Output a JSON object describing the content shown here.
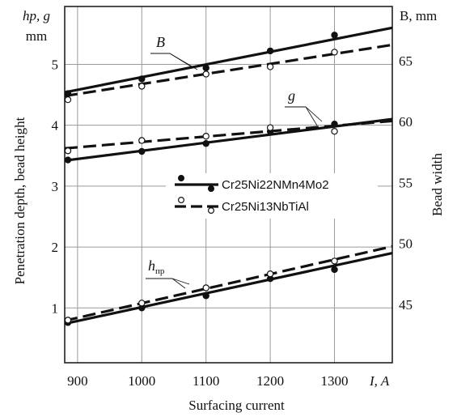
{
  "chart_data": {
    "type": "scatter",
    "x_label": "Surfacing current",
    "x_unit_label": "I, A",
    "x_ticks": [
      900,
      1000,
      1100,
      1200,
      1300
    ],
    "x_range": [
      880,
      1390
    ],
    "y_left_label": "Penetration depth, bead height",
    "y_left_header": "hp, g",
    "y_left_unit": "mm",
    "y_left_ticks": [
      1,
      2,
      3,
      4,
      5
    ],
    "y_left_range": [
      0.1,
      5.95
    ],
    "y_right_label": "Bead width",
    "y_right_header": "B, mm",
    "y_right_ticks": [
      45,
      50,
      55,
      60,
      65
    ],
    "y_right_range": [
      40.2,
      69.45
    ],
    "grid": true,
    "legend_position": "center-right",
    "legend": [
      {
        "label": "Cr25Ni22NMn4Mo2",
        "marker": "filled",
        "line": "solid"
      },
      {
        "label": "Cr25Ni13NbTiAl",
        "marker": "open",
        "line": "dashed"
      }
    ],
    "annotations": [
      {
        "base": "B",
        "sub": "",
        "series": "B"
      },
      {
        "base": "g",
        "sub": "",
        "series": "g"
      },
      {
        "base": "h",
        "sub": "пр",
        "series": "hp"
      }
    ],
    "series": [
      {
        "name": "B",
        "material": "Cr25Ni22NMn4Mo2",
        "axis": "right",
        "style": "solid",
        "marker": "filled",
        "points": [
          [
            885,
            62.3
          ],
          [
            1000,
            63.5
          ],
          [
            1100,
            64.4
          ],
          [
            1200,
            65.8
          ],
          [
            1300,
            67.1
          ]
        ],
        "fit": [
          [
            880,
            62.4
          ],
          [
            1390,
            67.7
          ]
        ]
      },
      {
        "name": "B",
        "material": "Cr25Ni13NbTiAl",
        "axis": "right",
        "style": "dashed",
        "marker": "open",
        "points": [
          [
            885,
            61.8
          ],
          [
            1000,
            62.9
          ],
          [
            1100,
            63.9
          ],
          [
            1200,
            64.5
          ],
          [
            1300,
            65.7
          ]
        ],
        "fit": [
          [
            880,
            62.1
          ],
          [
            1390,
            66.3
          ]
        ]
      },
      {
        "name": "g",
        "material": "Cr25Ni22NMn4Mo2",
        "axis": "left",
        "style": "solid",
        "marker": "filled",
        "points": [
          [
            885,
            3.43
          ],
          [
            1000,
            3.57
          ],
          [
            1100,
            3.7
          ],
          [
            1200,
            3.9
          ],
          [
            1300,
            4.02
          ]
        ],
        "fit": [
          [
            880,
            3.42
          ],
          [
            1390,
            4.1
          ]
        ]
      },
      {
        "name": "g",
        "material": "Cr25Ni13NbTiAl",
        "axis": "left",
        "style": "dashed",
        "marker": "open",
        "points": [
          [
            885,
            3.58
          ],
          [
            1000,
            3.75
          ],
          [
            1100,
            3.82
          ],
          [
            1200,
            3.96
          ],
          [
            1300,
            3.9
          ]
        ],
        "fit": [
          [
            880,
            3.62
          ],
          [
            1390,
            4.07
          ]
        ]
      },
      {
        "name": "hp",
        "material": "Cr25Ni22NMn4Mo2",
        "axis": "left",
        "style": "solid",
        "marker": "filled",
        "points": [
          [
            885,
            0.76
          ],
          [
            1000,
            1.0
          ],
          [
            1100,
            1.2
          ],
          [
            1200,
            1.48
          ],
          [
            1300,
            1.63
          ]
        ],
        "fit": [
          [
            880,
            0.74
          ],
          [
            1390,
            1.9
          ]
        ]
      },
      {
        "name": "hp",
        "material": "Cr25Ni13NbTiAl",
        "axis": "left",
        "style": "dashed",
        "marker": "open",
        "points": [
          [
            885,
            0.8
          ],
          [
            1000,
            1.08
          ],
          [
            1100,
            1.33
          ],
          [
            1200,
            1.56
          ],
          [
            1300,
            1.77
          ]
        ],
        "fit": [
          [
            880,
            0.79
          ],
          [
            1390,
            2.01
          ]
        ]
      }
    ]
  }
}
